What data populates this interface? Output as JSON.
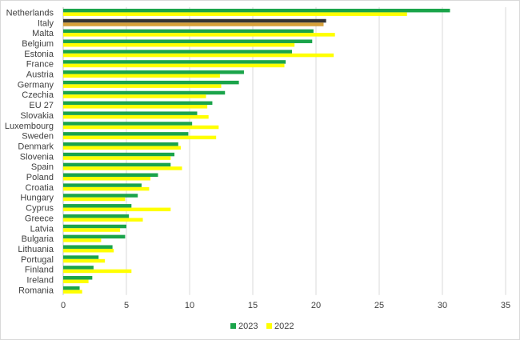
{
  "chart_data": {
    "type": "bar",
    "orientation": "horizontal",
    "title": "",
    "xlabel": "",
    "ylabel": "",
    "xlim": [
      0,
      35
    ],
    "xticks": [
      0,
      5,
      10,
      15,
      20,
      25,
      30,
      35
    ],
    "grid": "vertical",
    "legend_position": "bottom",
    "categories": [
      "Netherlands",
      "Italy",
      "Malta",
      "Belgium",
      "Estonia",
      "France",
      "Austria",
      "Germany",
      "Czechia",
      "EU 27",
      "Slovakia",
      "Luxembourg",
      "Sweden",
      "Denmark",
      "Slovenia",
      "Spain",
      "Poland",
      "Croatia",
      "Hungary",
      "Cyprus",
      "Greece",
      "Latvia",
      "Bulgaria",
      "Lithuania",
      "Portugal",
      "Finland",
      "Ireland",
      "Romania"
    ],
    "series": [
      {
        "name": "2023",
        "color": "#1aa44a",
        "values": [
          30.6,
          20.8,
          19.8,
          19.7,
          18.1,
          17.6,
          14.3,
          13.9,
          12.8,
          11.8,
          10.6,
          10.2,
          9.9,
          9.1,
          8.8,
          8.5,
          7.5,
          6.2,
          5.9,
          5.4,
          5.2,
          5.0,
          4.9,
          3.9,
          2.8,
          2.4,
          2.3,
          1.3
        ]
      },
      {
        "name": "2022",
        "color": "#ffff00",
        "values": [
          27.2,
          20.6,
          21.5,
          18.3,
          21.4,
          17.5,
          12.4,
          12.5,
          11.3,
          11.4,
          11.5,
          12.3,
          12.1,
          9.3,
          8.5,
          9.4,
          6.9,
          6.8,
          4.9,
          8.5,
          6.3,
          4.5,
          3.0,
          4.0,
          3.3,
          5.4,
          2.0,
          1.5
        ]
      }
    ],
    "highlight": {
      "category": "Italy",
      "colors": {
        "2023": "#333333",
        "2022": "#d6a03a"
      }
    },
    "gridline_color": "#d9d9d9",
    "axis_line_color": "#bfbfbf"
  }
}
